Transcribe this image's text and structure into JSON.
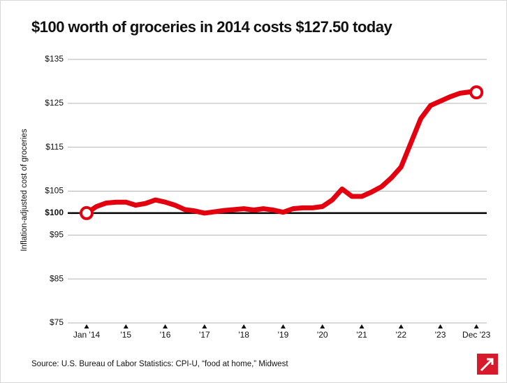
{
  "chart_data": {
    "type": "line",
    "title": "$100 worth of groceries in 2014 costs $127.50 today",
    "y_label": "Inflation-adjusted cost of groceries",
    "source": "Source: U.S. Bureau of Labor Statistics: CPI-U, “food at home,” Midwest",
    "x": [
      2014,
      2014.25,
      2014.5,
      2014.75,
      2015,
      2015.25,
      2015.5,
      2015.75,
      2016,
      2016.25,
      2016.5,
      2016.75,
      2017,
      2017.25,
      2017.5,
      2017.75,
      2018,
      2018.25,
      2018.5,
      2018.75,
      2019,
      2019.25,
      2019.5,
      2019.75,
      2020,
      2020.25,
      2020.5,
      2020.75,
      2021,
      2021.25,
      2021.5,
      2021.75,
      2022,
      2022.25,
      2022.5,
      2022.75,
      2023,
      2023.25,
      2023.5,
      2023.75,
      2023.917
    ],
    "series": [
      {
        "name": "Cost of groceries",
        "color": "#e3000f",
        "values": [
          100,
          101.5,
          102.3,
          102.5,
          102.5,
          101.8,
          102.2,
          103,
          102.5,
          101.8,
          100.8,
          100.5,
          100,
          100.3,
          100.6,
          100.8,
          101,
          100.7,
          101,
          100.7,
          100.2,
          101,
          101.2,
          101.2,
          101.5,
          103,
          105.5,
          103.8,
          103.8,
          104.8,
          106,
          108,
          110.5,
          116,
          121.5,
          124.5,
          125.5,
          126.5,
          127.3,
          127.6,
          127.5
        ]
      }
    ],
    "xlim": [
      2013.52,
      2024.18
    ],
    "xticks": [
      {
        "value": 2014,
        "label": "Jan '14"
      },
      {
        "value": 2015,
        "label": "'15"
      },
      {
        "value": 2016,
        "label": "'16"
      },
      {
        "value": 2017,
        "label": "'17"
      },
      {
        "value": 2018,
        "label": "'18"
      },
      {
        "value": 2019,
        "label": "'19"
      },
      {
        "value": 2020,
        "label": "'20"
      },
      {
        "value": 2021,
        "label": "'21"
      },
      {
        "value": 2022,
        "label": "'22"
      },
      {
        "value": 2023,
        "label": "'23"
      },
      {
        "value": 2023.917,
        "label": "Dec '23"
      }
    ],
    "ylim": [
      75,
      135
    ],
    "yticks": [
      {
        "value": 75,
        "label": "$75"
      },
      {
        "value": 85,
        "label": "$85"
      },
      {
        "value": 95,
        "label": "$95"
      },
      {
        "value": 100,
        "label": "$100"
      },
      {
        "value": 105,
        "label": "$105"
      },
      {
        "value": 115,
        "label": "$115"
      },
      {
        "value": 125,
        "label": "$125"
      },
      {
        "value": 135,
        "label": "$135"
      }
    ],
    "baseline": 100,
    "grid": true
  }
}
